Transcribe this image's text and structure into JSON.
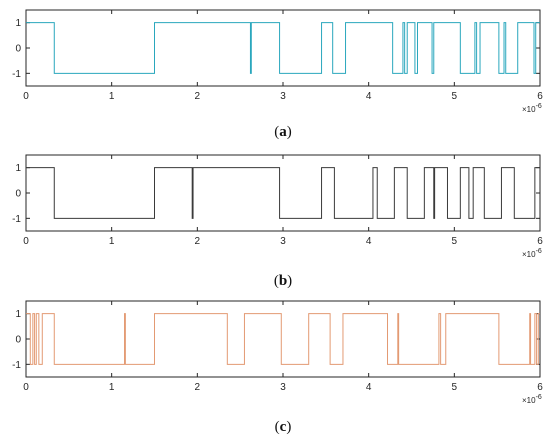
{
  "figure": {
    "x_exponent": "×10",
    "x_exponent_power": "-6"
  },
  "chart_data": [
    {
      "type": "line",
      "step": true,
      "caption_letter": "a",
      "color": "#2aa7bd",
      "xlim": [
        0,
        6
      ],
      "ylim": [
        -1.5,
        1.5
      ],
      "x_ticks": [
        0,
        1,
        2,
        3,
        4,
        5,
        6
      ],
      "y_ticks": [
        -1,
        0,
        1
      ],
      "x_unit_exponent": -6,
      "start_value": 1,
      "transitions": [
        0.33,
        1.5,
        2.62,
        2.63,
        2.96,
        3.45,
        3.58,
        3.73,
        4.28,
        4.4,
        4.42,
        4.45,
        4.54,
        4.57,
        4.74,
        4.76,
        5.07,
        5.24,
        5.26,
        5.3,
        5.52,
        5.58,
        5.6,
        5.74,
        5.93,
        5.95
      ]
    },
    {
      "type": "line",
      "step": true,
      "caption_letter": "b",
      "color": "#3a3a3a",
      "xlim": [
        0,
        6
      ],
      "ylim": [
        -1.5,
        1.5
      ],
      "x_ticks": [
        0,
        1,
        2,
        3,
        4,
        5,
        6
      ],
      "y_ticks": [
        -1,
        0,
        1
      ],
      "x_unit_exponent": -6,
      "start_value": 1,
      "transitions": [
        0.33,
        1.5,
        1.94,
        1.95,
        2.96,
        3.45,
        3.6,
        4.05,
        4.1,
        4.3,
        4.45,
        4.65,
        4.76,
        4.77,
        4.92,
        5.07,
        5.17,
        5.22,
        5.35,
        5.55,
        5.7,
        5.94
      ]
    },
    {
      "type": "line",
      "step": true,
      "caption_letter": "c",
      "color": "#e39a73",
      "xlim": [
        0,
        6
      ],
      "ylim": [
        -1.5,
        1.5
      ],
      "x_ticks": [
        0,
        1,
        2,
        3,
        4,
        5,
        6
      ],
      "y_ticks": [
        -1,
        0,
        1
      ],
      "x_unit_exponent": -6,
      "start_value": 1,
      "transitions": [
        0.05,
        0.08,
        0.1,
        0.12,
        0.15,
        0.19,
        0.33,
        1.15,
        1.16,
        1.5,
        2.35,
        2.55,
        2.98,
        3.3,
        3.55,
        3.7,
        4.22,
        4.34,
        4.35,
        4.82,
        4.84,
        4.9,
        5.52,
        5.88,
        5.89,
        5.94,
        5.96,
        5.98
      ]
    }
  ]
}
